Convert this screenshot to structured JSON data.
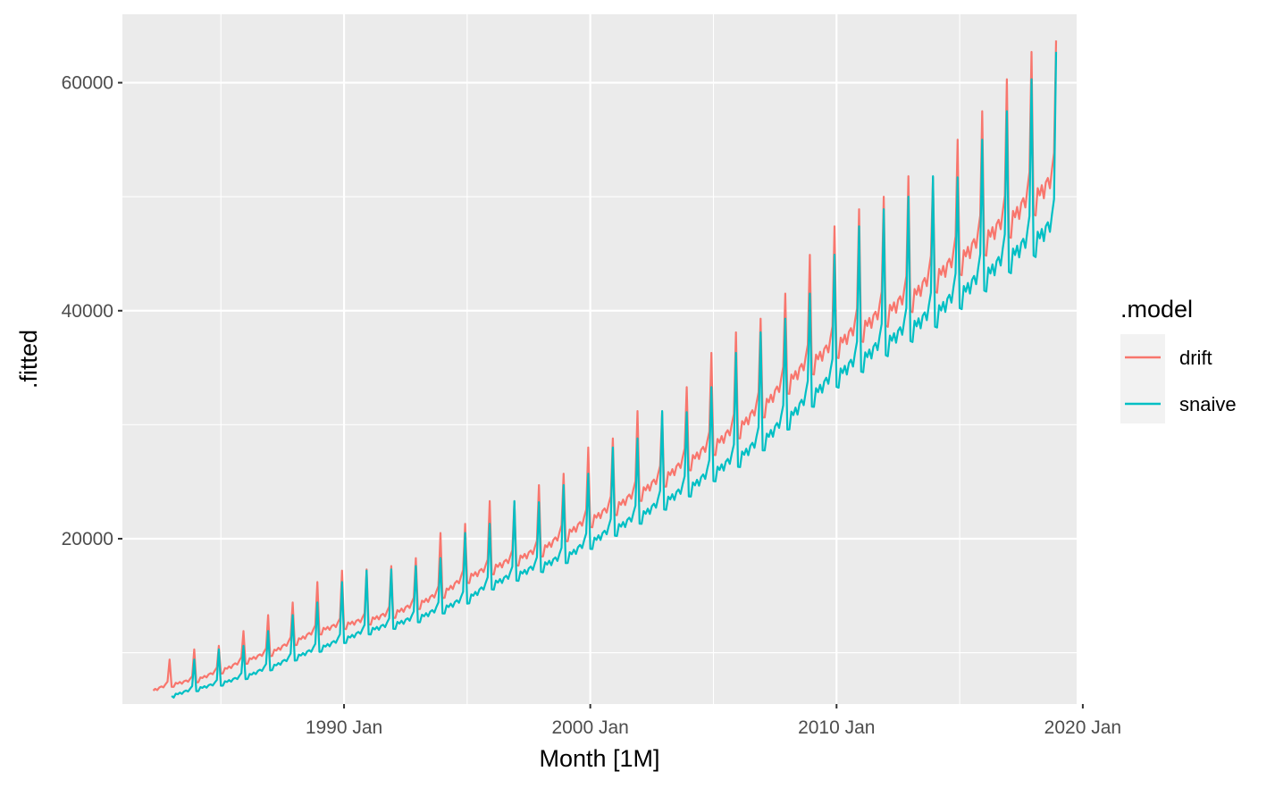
{
  "chart_data": {
    "type": "line",
    "xlabel": "Month [1M]",
    "ylabel": ".fitted",
    "x_ticks": [
      "1990 Jan",
      "2000 Jan",
      "2010 Jan",
      "2020 Jan"
    ],
    "y_ticks": [
      "20000",
      "40000",
      "60000"
    ],
    "xlim": [
      "1981-01",
      "2019-10"
    ],
    "ylim": [
      5500,
      66000
    ],
    "grid": true,
    "legend": {
      "title": ".model",
      "position": "right"
    },
    "series_start": "1982-04",
    "series_end": "2018-12",
    "series": [
      {
        "name": "drift",
        "color": "#F8766D",
        "december_peaks": [
          {
            "year": 1982,
            "value": 9400
          },
          {
            "year": 1983,
            "value": 10300
          },
          {
            "year": 1984,
            "value": 10600
          },
          {
            "year": 1985,
            "value": 11900
          },
          {
            "year": 1986,
            "value": 13300
          },
          {
            "year": 1987,
            "value": 14400
          },
          {
            "year": 1988,
            "value": 16200
          },
          {
            "year": 1989,
            "value": 17200
          },
          {
            "year": 1990,
            "value": 17300
          },
          {
            "year": 1991,
            "value": 17600
          },
          {
            "year": 1992,
            "value": 18300
          },
          {
            "year": 1993,
            "value": 20500
          },
          {
            "year": 1994,
            "value": 21300
          },
          {
            "year": 1995,
            "value": 23300
          },
          {
            "year": 1996,
            "value": 23200
          },
          {
            "year": 1997,
            "value": 24700
          },
          {
            "year": 1998,
            "value": 25700
          },
          {
            "year": 1999,
            "value": 28000
          },
          {
            "year": 2000,
            "value": 28800
          },
          {
            "year": 2001,
            "value": 31200
          },
          {
            "year": 2002,
            "value": 31100
          },
          {
            "year": 2003,
            "value": 33300
          },
          {
            "year": 2004,
            "value": 36300
          },
          {
            "year": 2005,
            "value": 38100
          },
          {
            "year": 2006,
            "value": 39300
          },
          {
            "year": 2007,
            "value": 41500
          },
          {
            "year": 2008,
            "value": 44900
          },
          {
            "year": 2009,
            "value": 47400
          },
          {
            "year": 2010,
            "value": 48900
          },
          {
            "year": 2011,
            "value": 50000
          },
          {
            "year": 2012,
            "value": 51800
          },
          {
            "year": 2013,
            "value": 51700
          },
          {
            "year": 2014,
            "value": 55000
          },
          {
            "year": 2015,
            "value": 57500
          },
          {
            "year": 2016,
            "value": 60300
          },
          {
            "year": 2017,
            "value": 62700
          },
          {
            "year": 2018,
            "value": 63700
          }
        ],
        "baseline": [
          {
            "year": 1982,
            "value": 6600
          },
          {
            "year": 1983,
            "value": 7300
          },
          {
            "year": 1984,
            "value": 7700
          },
          {
            "year": 1985,
            "value": 8500
          },
          {
            "year": 1986,
            "value": 9400
          },
          {
            "year": 1987,
            "value": 10100
          },
          {
            "year": 1988,
            "value": 11100
          },
          {
            "year": 1989,
            "value": 12100
          },
          {
            "year": 1990,
            "value": 12600
          },
          {
            "year": 1991,
            "value": 13000
          },
          {
            "year": 1992,
            "value": 13600
          },
          {
            "year": 1993,
            "value": 14400
          },
          {
            "year": 1994,
            "value": 15400
          },
          {
            "year": 1995,
            "value": 16800
          },
          {
            "year": 1996,
            "value": 17600
          },
          {
            "year": 1997,
            "value": 18400
          },
          {
            "year": 1998,
            "value": 19200
          },
          {
            "year": 1999,
            "value": 20600
          },
          {
            "year": 2000,
            "value": 21900
          },
          {
            "year": 2001,
            "value": 23000
          },
          {
            "year": 2002,
            "value": 24300
          },
          {
            "year": 2003,
            "value": 25600
          },
          {
            "year": 2004,
            "value": 27100
          },
          {
            "year": 2005,
            "value": 28500
          },
          {
            "year": 2006,
            "value": 30000
          },
          {
            "year": 2007,
            "value": 31900
          },
          {
            "year": 2008,
            "value": 34100
          },
          {
            "year": 2009,
            "value": 35900
          },
          {
            "year": 2010,
            "value": 37400
          },
          {
            "year": 2011,
            "value": 38900
          },
          {
            "year": 2012,
            "value": 40300
          },
          {
            "year": 2013,
            "value": 41600
          },
          {
            "year": 2014,
            "value": 43400
          },
          {
            "year": 2015,
            "value": 45000
          },
          {
            "year": 2016,
            "value": 46800
          },
          {
            "year": 2017,
            "value": 48400
          },
          {
            "year": 2018,
            "value": 50500
          }
        ]
      },
      {
        "name": "snaive",
        "color": "#00BFC4",
        "december_peaks": [
          {
            "year": 1983,
            "value": 9400
          },
          {
            "year": 1984,
            "value": 10300
          },
          {
            "year": 1985,
            "value": 10600
          },
          {
            "year": 1986,
            "value": 11900
          },
          {
            "year": 1987,
            "value": 13300
          },
          {
            "year": 1988,
            "value": 14400
          },
          {
            "year": 1989,
            "value": 16200
          },
          {
            "year": 1990,
            "value": 17200
          },
          {
            "year": 1991,
            "value": 17300
          },
          {
            "year": 1992,
            "value": 17600
          },
          {
            "year": 1993,
            "value": 18300
          },
          {
            "year": 1994,
            "value": 20500
          },
          {
            "year": 1995,
            "value": 21300
          },
          {
            "year": 1996,
            "value": 23300
          },
          {
            "year": 1997,
            "value": 23200
          },
          {
            "year": 1998,
            "value": 24700
          },
          {
            "year": 1999,
            "value": 25700
          },
          {
            "year": 2000,
            "value": 28000
          },
          {
            "year": 2001,
            "value": 28800
          },
          {
            "year": 2002,
            "value": 31200
          },
          {
            "year": 2003,
            "value": 31100
          },
          {
            "year": 2004,
            "value": 33300
          },
          {
            "year": 2005,
            "value": 36300
          },
          {
            "year": 2006,
            "value": 38100
          },
          {
            "year": 2007,
            "value": 39300
          },
          {
            "year": 2008,
            "value": 41500
          },
          {
            "year": 2009,
            "value": 44900
          },
          {
            "year": 2010,
            "value": 47400
          },
          {
            "year": 2011,
            "value": 48900
          },
          {
            "year": 2012,
            "value": 50000
          },
          {
            "year": 2013,
            "value": 51800
          },
          {
            "year": 2014,
            "value": 51700
          },
          {
            "year": 2015,
            "value": 55000
          },
          {
            "year": 2016,
            "value": 57500
          },
          {
            "year": 2017,
            "value": 60300
          },
          {
            "year": 2018,
            "value": 62700
          }
        ],
        "baseline": [
          {
            "year": 1983,
            "value": 6300
          },
          {
            "year": 1984,
            "value": 6900
          },
          {
            "year": 1985,
            "value": 7400
          },
          {
            "year": 1986,
            "value": 8000
          },
          {
            "year": 1987,
            "value": 8800
          },
          {
            "year": 1988,
            "value": 9700
          },
          {
            "year": 1989,
            "value": 10500
          },
          {
            "year": 1990,
            "value": 11300
          },
          {
            "year": 1991,
            "value": 12100
          },
          {
            "year": 1992,
            "value": 12600
          },
          {
            "year": 1993,
            "value": 13200
          },
          {
            "year": 1994,
            "value": 14000
          },
          {
            "year": 1995,
            "value": 14900
          },
          {
            "year": 1996,
            "value": 16200
          },
          {
            "year": 1997,
            "value": 17000
          },
          {
            "year": 1998,
            "value": 17800
          },
          {
            "year": 1999,
            "value": 18600
          },
          {
            "year": 2000,
            "value": 19900
          },
          {
            "year": 2001,
            "value": 21100
          },
          {
            "year": 2002,
            "value": 22200
          },
          {
            "year": 2003,
            "value": 23500
          },
          {
            "year": 2004,
            "value": 24700
          },
          {
            "year": 2005,
            "value": 26100
          },
          {
            "year": 2006,
            "value": 27400
          },
          {
            "year": 2007,
            "value": 28900
          },
          {
            "year": 2008,
            "value": 30800
          },
          {
            "year": 2009,
            "value": 32900
          },
          {
            "year": 2010,
            "value": 34700
          },
          {
            "year": 2011,
            "value": 36100
          },
          {
            "year": 2012,
            "value": 37600
          },
          {
            "year": 2013,
            "value": 38900
          },
          {
            "year": 2014,
            "value": 40200
          },
          {
            "year": 2015,
            "value": 41900
          },
          {
            "year": 2016,
            "value": 43500
          },
          {
            "year": 2017,
            "value": 45200
          },
          {
            "year": 2018,
            "value": 46700
          }
        ]
      }
    ]
  },
  "legend": {
    "title": ".model",
    "items": [
      {
        "label": "drift",
        "color": "#F8766D"
      },
      {
        "label": "snaive",
        "color": "#00BFC4"
      }
    ]
  }
}
